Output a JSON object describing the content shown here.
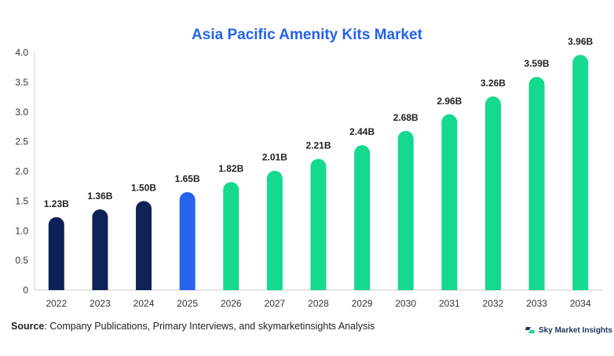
{
  "chart_data": {
    "type": "bar",
    "title": "Asia Pacific Amenity Kits Market",
    "categories": [
      "2022",
      "2023",
      "2024",
      "2025",
      "2026",
      "2027",
      "2028",
      "2029",
      "2030",
      "2031",
      "2032",
      "2033",
      "2034"
    ],
    "values": [
      1.23,
      1.36,
      1.5,
      1.65,
      1.82,
      2.01,
      2.21,
      2.44,
      2.68,
      2.96,
      3.26,
      3.59,
      3.96
    ],
    "data_labels": [
      "1.23B",
      "1.36B",
      "1.50B",
      "1.65B",
      "1.82B",
      "2.01B",
      "2.21B",
      "2.44B",
      "2.68B",
      "2.96B",
      "3.26B",
      "3.59B",
      "3.96B"
    ],
    "bar_colors": [
      "#0f2257",
      "#0f2257",
      "#0f2257",
      "#2563eb",
      "#14d98f",
      "#14d98f",
      "#14d98f",
      "#14d98f",
      "#14d98f",
      "#14d98f",
      "#14d98f",
      "#14d98f",
      "#14d98f"
    ],
    "ylim": [
      0,
      4.0
    ],
    "yticks": [
      "0",
      "0.5",
      "1.0",
      "1.5",
      "2.0",
      "2.5",
      "3.0",
      "3.5",
      "4.0"
    ],
    "ytick_values": [
      0,
      0.5,
      1.0,
      1.5,
      2.0,
      2.5,
      3.0,
      3.5,
      4.0
    ],
    "grid": false,
    "xlabel": "",
    "ylabel": ""
  },
  "source": {
    "label": "Source",
    "text": ": Company Publications, Primary Interviews, and skymarketinsights Analysis"
  },
  "brand": {
    "name": "Sky Market Insights",
    "icon": "sky-market-insights-logo",
    "colors": [
      "#1d3557",
      "#14d98f"
    ]
  }
}
